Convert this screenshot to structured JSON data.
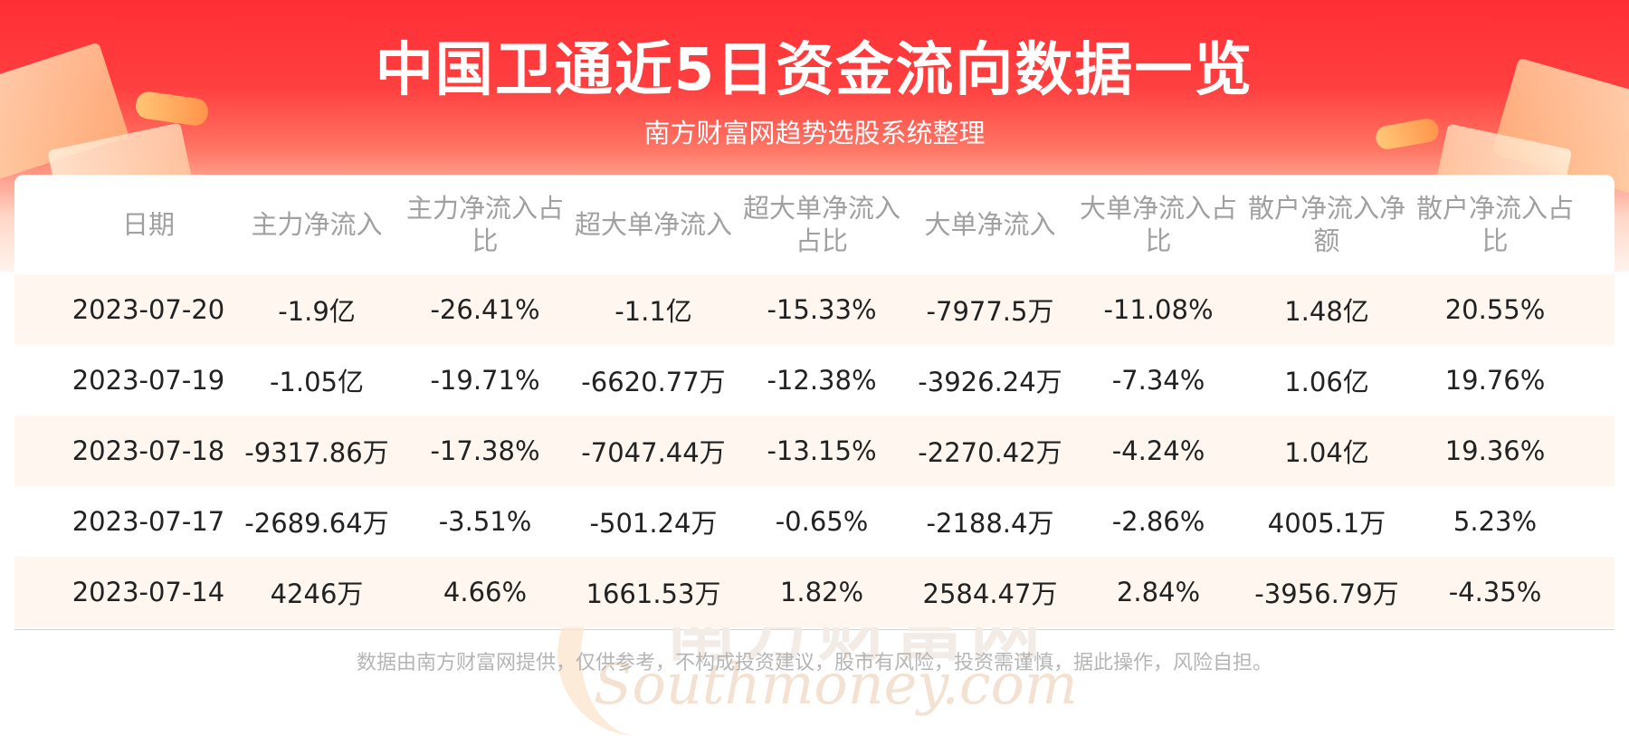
{
  "title": "中国卫通近5日资金流向数据一览",
  "subtitle": "南方财富网趋势选股系统整理",
  "watermark": {
    "cn": "南方财富网",
    "en": "Southmoney.com"
  },
  "table": {
    "headers": [
      "日期",
      "主力净流入",
      "主力净流入占比",
      "超大单净流入",
      "超大单净流入占比",
      "大单净流入",
      "大单净流入占比",
      "散户净流入净额",
      "散户净流入占比"
    ],
    "rows": [
      [
        "2023-07-20",
        "-1.9亿",
        "-26.41%",
        "-1.1亿",
        "-15.33%",
        "-7977.5万",
        "-11.08%",
        "1.48亿",
        "20.55%"
      ],
      [
        "2023-07-19",
        "-1.05亿",
        "-19.71%",
        "-6620.77万",
        "-12.38%",
        "-3926.24万",
        "-7.34%",
        "1.06亿",
        "19.76%"
      ],
      [
        "2023-07-18",
        "-9317.86万",
        "-17.38%",
        "-7047.44万",
        "-13.15%",
        "-2270.42万",
        "-4.24%",
        "1.04亿",
        "19.36%"
      ],
      [
        "2023-07-17",
        "-2689.64万",
        "-3.51%",
        "-501.24万",
        "-0.65%",
        "-2188.4万",
        "-2.86%",
        "4005.1万",
        "5.23%"
      ],
      [
        "2023-07-14",
        "4246万",
        "4.66%",
        "1661.53万",
        "1.82%",
        "2584.47万",
        "2.84%",
        "-3956.79万",
        "-4.35%"
      ]
    ]
  },
  "disclaimer": "数据由南方财富网提供，仅供参考，不构成投资建议，股市有风险，投资需谨慎，据此操作，风险自担。"
}
